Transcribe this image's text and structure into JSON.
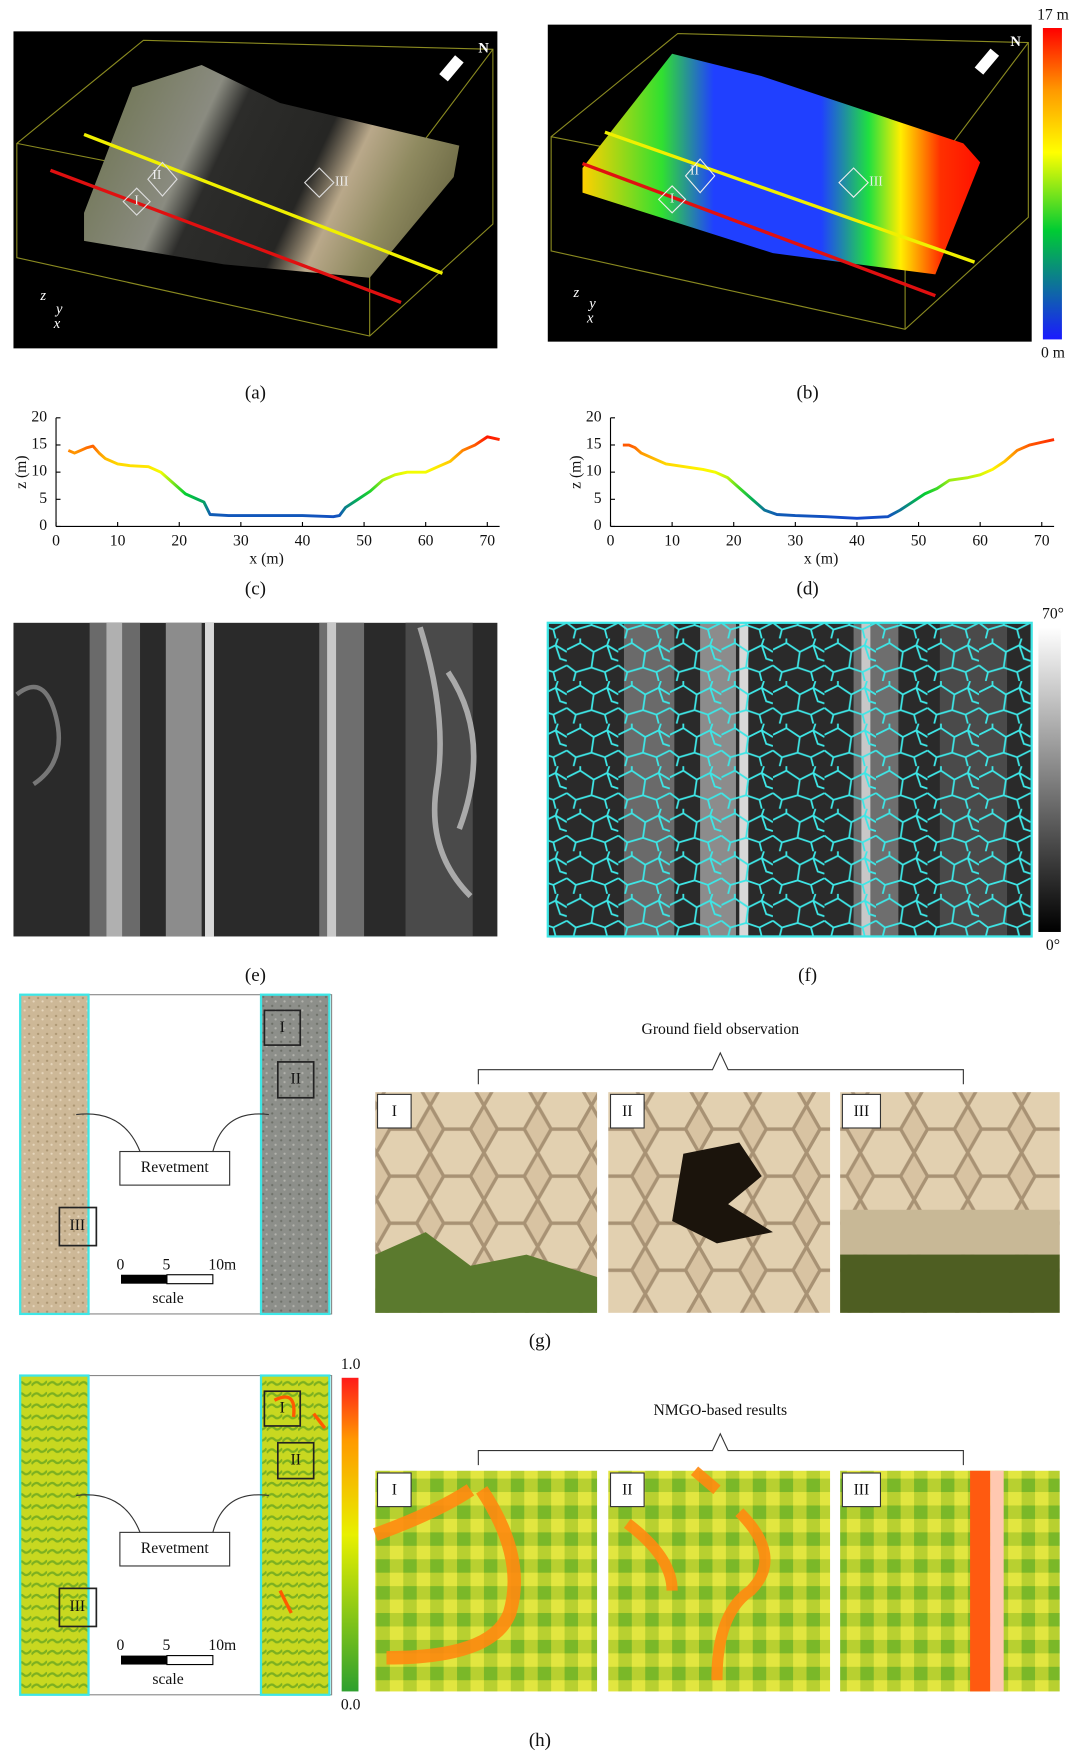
{
  "chart_data": [
    {
      "type": "line",
      "label": "(c)",
      "x_label": "x (m)",
      "y_label": "z (m)",
      "x": [
        2,
        3,
        4,
        5,
        6,
        7,
        8,
        10,
        12,
        15,
        17,
        19,
        21,
        23,
        24,
        25,
        28,
        30,
        35,
        40,
        45,
        46,
        47,
        49,
        51,
        53,
        55,
        57,
        60,
        62,
        64,
        66,
        68,
        70,
        72
      ],
      "values": [
        14,
        13.5,
        14,
        14.5,
        14.8,
        13.5,
        12.5,
        11.5,
        11.2,
        11,
        10,
        8,
        6,
        5,
        4.5,
        2.2,
        2,
        2,
        2,
        2,
        1.8,
        2,
        3.5,
        5,
        6.5,
        8.5,
        9.5,
        10,
        10,
        11,
        12,
        14,
        15,
        16.5,
        16
      ],
      "xlim": [
        0,
        72
      ],
      "ylim": [
        0,
        20
      ],
      "xticks": [
        0,
        10,
        20,
        30,
        40,
        50,
        60,
        70
      ],
      "yticks": [
        0,
        5,
        10,
        15,
        20
      ]
    },
    {
      "type": "line",
      "label": "(d)",
      "x_label": "x (m)",
      "y_label": "z (m)",
      "x": [
        2,
        3,
        4,
        5,
        7,
        9,
        12,
        15,
        17,
        19,
        21,
        23,
        25,
        27,
        30,
        35,
        40,
        45,
        47,
        49,
        51,
        53,
        55,
        58,
        60,
        62,
        64,
        66,
        68,
        70,
        72
      ],
      "values": [
        15,
        15,
        14.5,
        13.5,
        12.5,
        11.5,
        11,
        10.5,
        10,
        9,
        7,
        5,
        3,
        2.2,
        2,
        1.8,
        1.5,
        1.8,
        3,
        4.5,
        6,
        7,
        8.5,
        9,
        9.5,
        10.5,
        12,
        14,
        15,
        15.5,
        16
      ],
      "xlim": [
        0,
        72
      ],
      "ylim": [
        0,
        20
      ],
      "xticks": [
        0,
        10,
        20,
        30,
        40,
        50,
        60,
        70
      ],
      "yticks": [
        0,
        5,
        10,
        15,
        20
      ]
    }
  ],
  "panels": {
    "a": {
      "label": "(a)",
      "north": "N",
      "axes": [
        "z",
        "y",
        "x"
      ],
      "regions": [
        "I",
        "II",
        "III"
      ]
    },
    "b": {
      "label": "(b)",
      "north": "N",
      "axes": [
        "z",
        "y",
        "x"
      ],
      "regions": [
        "I",
        "II",
        "III"
      ],
      "colorbar_ticks": [
        {
          "value": 0,
          "label": "0 m"
        },
        {
          "value": 17,
          "label": "17 m"
        }
      ]
    },
    "e": {
      "label": "(e)"
    },
    "f": {
      "label": "(f)",
      "colorbar_ticks": [
        {
          "value": 0,
          "label": "0°"
        },
        {
          "value": 70,
          "label": "70°"
        }
      ]
    },
    "g": {
      "label": "(g)",
      "caption": "Ground field observation",
      "revetment": "Revetment",
      "regions": [
        "I",
        "II",
        "III"
      ],
      "scale_ticks": [
        0,
        5,
        {
          "value": 10,
          "label": "10m"
        }
      ],
      "scale_label": "scale",
      "photo_labels": [
        "I",
        "II",
        "III"
      ]
    },
    "h": {
      "label": "(h)",
      "caption": "NMGO-based results",
      "revetment": "Revetment",
      "regions": [
        "I",
        "II",
        "III"
      ],
      "scale_ticks": [
        0,
        5,
        {
          "value": 10,
          "label": "10m"
        }
      ],
      "scale_label": "scale",
      "photo_labels": [
        "I",
        "II",
        "III"
      ],
      "colorbar_ticks": [
        {
          "value": 0,
          "label": "0.0"
        },
        {
          "value": 1,
          "label": "1.0"
        }
      ]
    }
  }
}
